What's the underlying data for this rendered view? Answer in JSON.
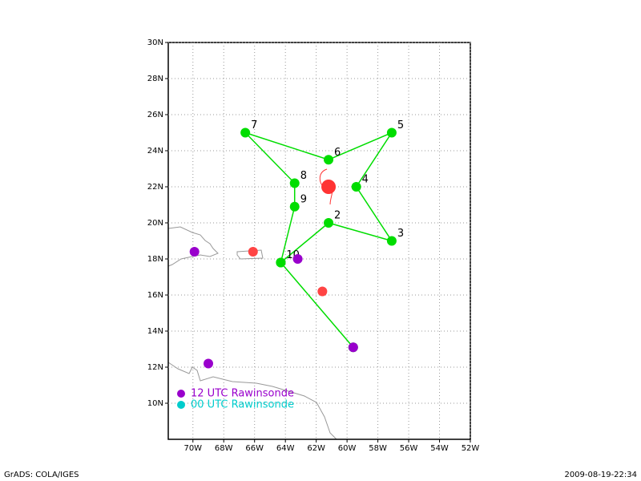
{
  "map": {
    "xlim": [
      -71.6,
      -52
    ],
    "ylim": [
      8,
      30
    ],
    "xticks": [
      {
        "value": -70,
        "label": "70W"
      },
      {
        "value": -68,
        "label": "68W"
      },
      {
        "value": -66,
        "label": "66W"
      },
      {
        "value": -64,
        "label": "64W"
      },
      {
        "value": -62,
        "label": "62W"
      },
      {
        "value": -60,
        "label": "60W"
      },
      {
        "value": -58,
        "label": "58W"
      },
      {
        "value": -56,
        "label": "56W"
      },
      {
        "value": -54,
        "label": "54W"
      },
      {
        "value": -52,
        "label": "52W"
      }
    ],
    "yticks": [
      {
        "value": 10,
        "label": "10N"
      },
      {
        "value": 12,
        "label": "12N"
      },
      {
        "value": 14,
        "label": "14N"
      },
      {
        "value": 16,
        "label": "16N"
      },
      {
        "value": 18,
        "label": "18N"
      },
      {
        "value": 20,
        "label": "20N"
      },
      {
        "value": 22,
        "label": "22N"
      },
      {
        "value": 24,
        "label": "24N"
      },
      {
        "value": 26,
        "label": "26N"
      },
      {
        "value": 28,
        "label": "28N"
      },
      {
        "value": 30,
        "label": "30N"
      }
    ],
    "grid": true,
    "track": {
      "color": "#00dd00",
      "lon": [
        -59.6,
        -64.3,
        -61.2,
        -57.1,
        -59.4,
        -57.1,
        -61.2,
        -66.6,
        -63.4,
        -63.4,
        -64.3
      ],
      "lat": [
        13.1,
        17.8,
        20.0,
        19.0,
        22.0,
        25.0,
        23.5,
        25.0,
        22.2,
        20.9,
        17.8
      ],
      "labels": [
        null,
        "10",
        "2",
        "3",
        "4",
        "5",
        "6",
        "7",
        "8",
        "9",
        null
      ]
    },
    "rawinsonde_12utc": {
      "name": "12 UTC Rawinsonde",
      "color": "#9900cc",
      "lon": [
        -69.9,
        -63.2,
        -69.0,
        -59.6
      ],
      "lat": [
        18.4,
        18.0,
        12.2,
        13.1
      ]
    },
    "rawinsonde_00utc": {
      "name": "00 UTC Rawinsonde",
      "color": "#00cccc",
      "lon": [],
      "lat": []
    },
    "other_points": {
      "color": "#ff4444",
      "lon": [
        -66.1,
        -61.6
      ],
      "lat": [
        18.4,
        16.2
      ]
    },
    "storm": {
      "color": "#ff3333",
      "lon": -61.2,
      "lat": 22.0
    }
  },
  "footer": {
    "left": "GrADS: COLA/IGES",
    "right": "2009-08-19-22:34"
  }
}
